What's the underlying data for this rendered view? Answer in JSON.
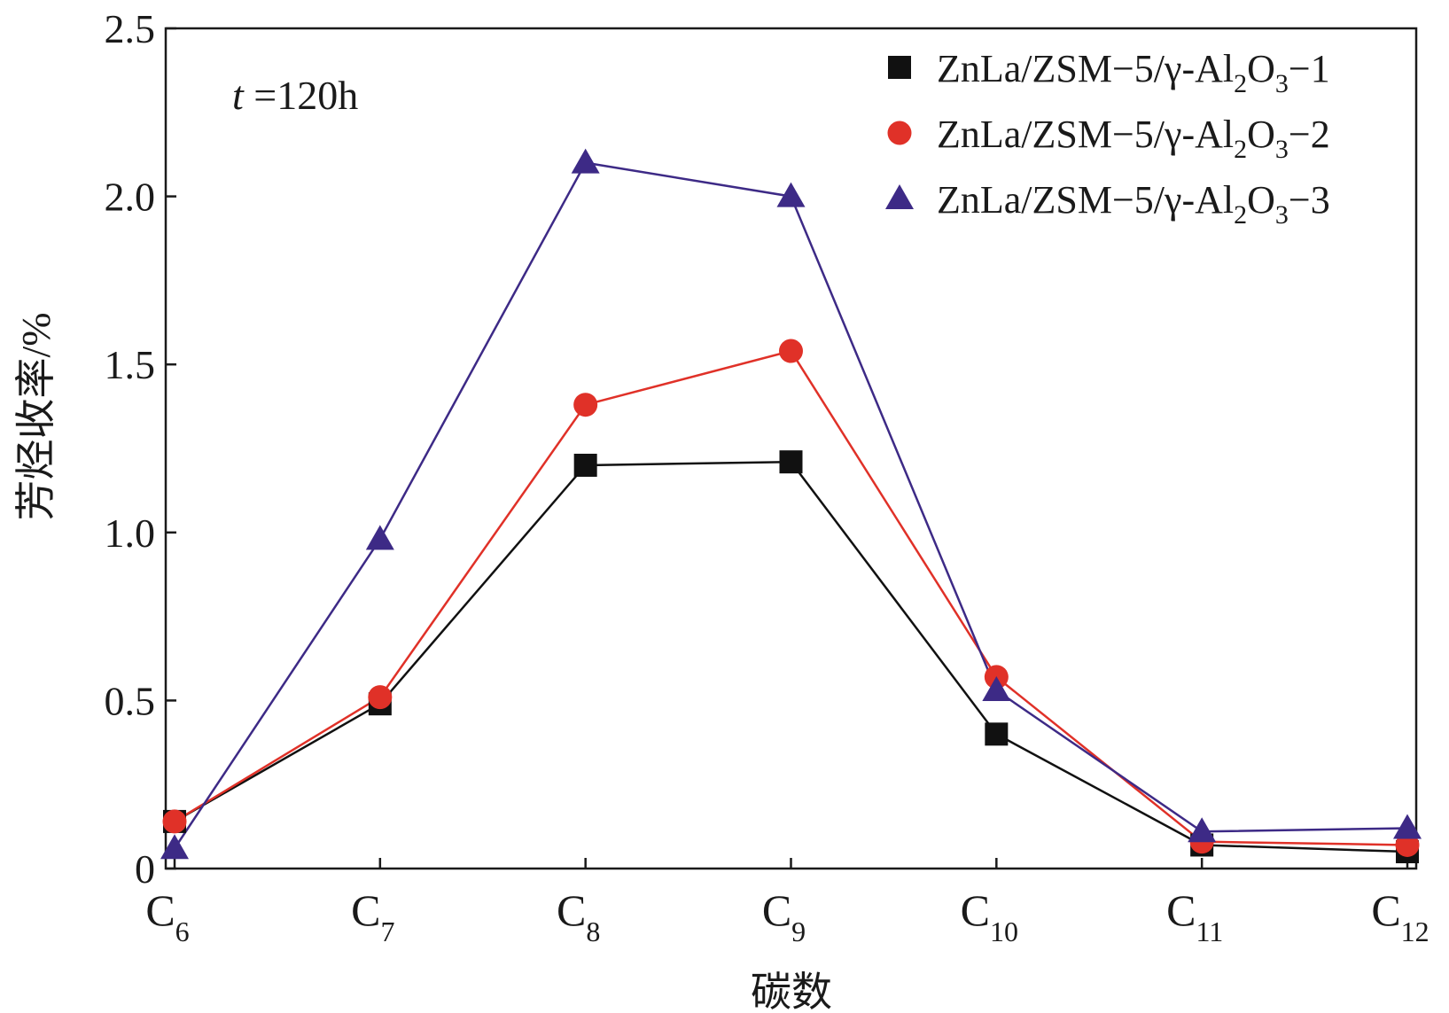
{
  "chart_data": {
    "type": "line",
    "annotation": {
      "italic": "t",
      "rest": " =120h"
    },
    "xlabel": "碳数",
    "ylabel": "芳烃收率/%",
    "categories": [
      {
        "base": "C",
        "sub": "6"
      },
      {
        "base": "C",
        "sub": "7"
      },
      {
        "base": "C",
        "sub": "8"
      },
      {
        "base": "C",
        "sub": "9"
      },
      {
        "base": "C",
        "sub": "10"
      },
      {
        "base": "C",
        "sub": "11"
      },
      {
        "base": "C",
        "sub": "12"
      }
    ],
    "ylim": [
      0,
      2.5
    ],
    "yticks": [
      "0",
      "0.5",
      "1.0",
      "1.5",
      "2.0",
      "2.5"
    ],
    "series": [
      {
        "name": "ZnLa/ZSM−5/γ-Al₂O₃−1",
        "legend_parts": {
          "a": "ZnLa/ZSM−5/γ-Al",
          "s1": "2",
          "b": "O",
          "s2": "3",
          "c": "−1"
        },
        "marker": "square",
        "color": "#111111",
        "values": [
          0.14,
          0.49,
          1.2,
          1.21,
          0.4,
          0.07,
          0.05
        ]
      },
      {
        "name": "ZnLa/ZSM−5/γ-Al₂O₃−2",
        "legend_parts": {
          "a": "ZnLa/ZSM−5/γ-Al",
          "s1": "2",
          "b": "O",
          "s2": "3",
          "c": "−2"
        },
        "marker": "circle",
        "color": "#e03128",
        "values": [
          0.14,
          0.51,
          1.38,
          1.54,
          0.57,
          0.08,
          0.07
        ]
      },
      {
        "name": "ZnLa/ZSM−5/γ-Al₂O₃−3",
        "legend_parts": {
          "a": "ZnLa/ZSM−5/γ-Al",
          "s1": "2",
          "b": "O",
          "s2": "3",
          "c": "−3"
        },
        "marker": "triangle",
        "color": "#3d2a86",
        "values": [
          0.06,
          0.98,
          2.1,
          2.0,
          0.53,
          0.11,
          0.12
        ]
      }
    ]
  }
}
